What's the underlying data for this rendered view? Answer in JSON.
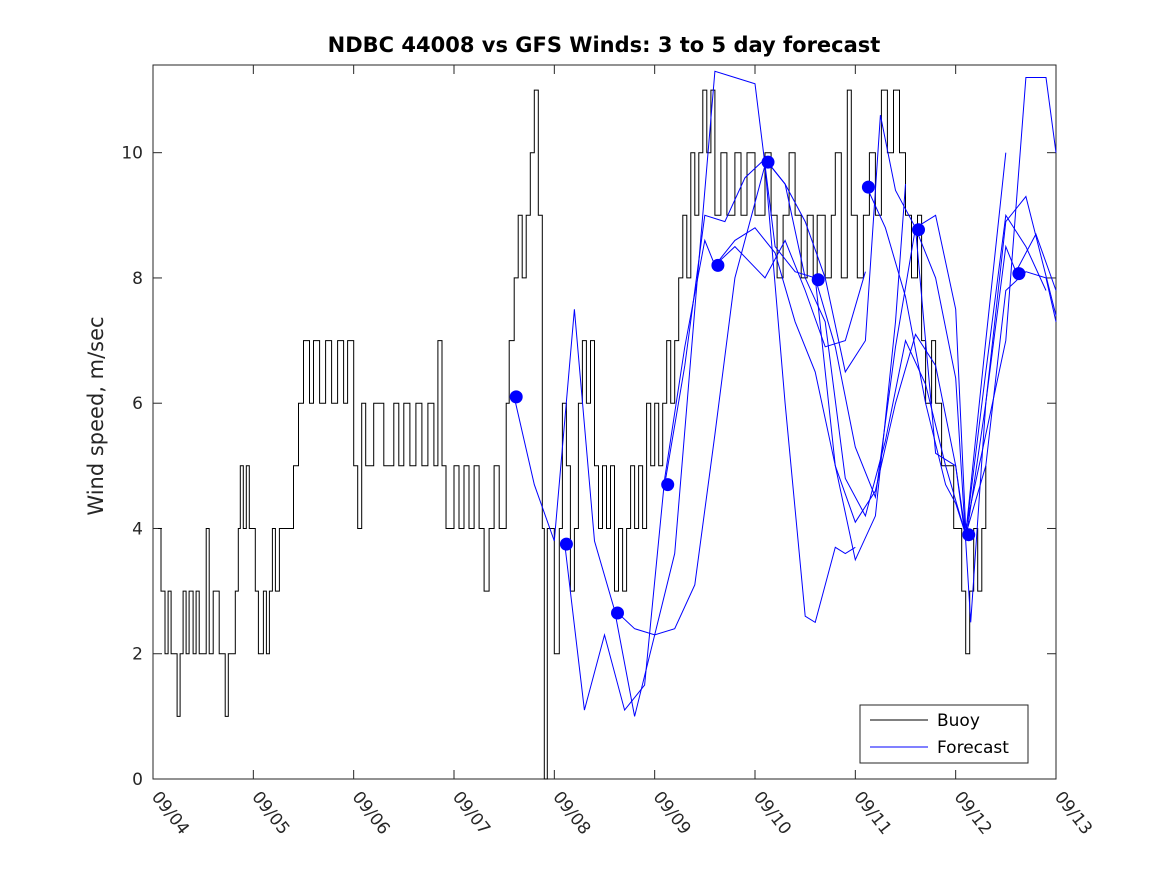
{
  "chart_data": {
    "type": "line",
    "title": "NDBC 44008 vs GFS Winds: 3 to 5 day forecast",
    "xlabel": "",
    "ylabel": "Wind speed, m/sec",
    "x_unit": "days since 09/04 00:00",
    "xlim": [
      0,
      9
    ],
    "ylim": [
      0,
      11.4
    ],
    "y_ticks": [
      0,
      2,
      4,
      6,
      8,
      10
    ],
    "x_tick_labels": [
      "09/04",
      "09/05",
      "09/06",
      "09/07",
      "09/08",
      "09/09",
      "09/10",
      "09/11",
      "09/12",
      "09/13"
    ],
    "legend": {
      "position": "bottom-right",
      "entries": [
        {
          "label": "Buoy",
          "color": "#000000"
        },
        {
          "label": "Forecast",
          "color": "#0000ff"
        }
      ]
    },
    "colors": {
      "buoy": "#000000",
      "forecast": "#0000ff",
      "axes": "#262626"
    },
    "buoy": {
      "name": "Buoy",
      "points": [
        [
          0.05,
          4
        ],
        [
          0.08,
          3
        ],
        [
          0.12,
          2
        ],
        [
          0.15,
          3
        ],
        [
          0.18,
          2
        ],
        [
          0.24,
          1
        ],
        [
          0.27,
          2
        ],
        [
          0.3,
          3
        ],
        [
          0.33,
          2
        ],
        [
          0.36,
          3
        ],
        [
          0.4,
          2
        ],
        [
          0.43,
          3
        ],
        [
          0.46,
          2
        ],
        [
          0.53,
          4
        ],
        [
          0.56,
          2
        ],
        [
          0.6,
          3
        ],
        [
          0.66,
          2
        ],
        [
          0.72,
          1
        ],
        [
          0.75,
          2
        ],
        [
          0.82,
          3
        ],
        [
          0.85,
          4
        ],
        [
          0.87,
          5
        ],
        [
          0.9,
          4
        ],
        [
          0.93,
          5
        ],
        [
          0.96,
          4
        ],
        [
          1.02,
          3
        ],
        [
          1.05,
          2
        ],
        [
          1.1,
          3
        ],
        [
          1.13,
          2
        ],
        [
          1.16,
          3
        ],
        [
          1.19,
          4
        ],
        [
          1.22,
          3
        ],
        [
          1.26,
          4
        ],
        [
          1.4,
          5
        ],
        [
          1.45,
          6
        ],
        [
          1.5,
          7
        ],
        [
          1.56,
          6
        ],
        [
          1.6,
          7
        ],
        [
          1.66,
          6
        ],
        [
          1.72,
          7
        ],
        [
          1.78,
          6
        ],
        [
          1.84,
          7
        ],
        [
          1.9,
          6
        ],
        [
          1.94,
          7
        ],
        [
          2.0,
          5
        ],
        [
          2.04,
          4
        ],
        [
          2.08,
          6
        ],
        [
          2.12,
          5
        ],
        [
          2.2,
          6
        ],
        [
          2.3,
          5
        ],
        [
          2.4,
          6
        ],
        [
          2.45,
          5
        ],
        [
          2.5,
          6
        ],
        [
          2.56,
          5
        ],
        [
          2.62,
          6
        ],
        [
          2.68,
          5
        ],
        [
          2.74,
          6
        ],
        [
          2.8,
          5
        ],
        [
          2.84,
          7
        ],
        [
          2.88,
          5
        ],
        [
          2.92,
          4
        ],
        [
          3.0,
          5
        ],
        [
          3.05,
          4
        ],
        [
          3.1,
          5
        ],
        [
          3.15,
          4
        ],
        [
          3.2,
          5
        ],
        [
          3.25,
          4
        ],
        [
          3.3,
          3
        ],
        [
          3.35,
          4
        ],
        [
          3.4,
          5
        ],
        [
          3.45,
          4
        ],
        [
          3.52,
          6
        ],
        [
          3.55,
          7
        ],
        [
          3.6,
          8
        ],
        [
          3.64,
          9
        ],
        [
          3.68,
          8
        ],
        [
          3.72,
          9
        ],
        [
          3.76,
          10
        ],
        [
          3.8,
          11
        ],
        [
          3.84,
          9
        ],
        [
          3.88,
          4
        ],
        [
          3.9,
          0
        ],
        [
          3.93,
          4
        ],
        [
          4.0,
          2
        ],
        [
          4.05,
          4
        ],
        [
          4.08,
          6
        ],
        [
          4.12,
          5
        ],
        [
          4.16,
          3
        ],
        [
          4.2,
          4
        ],
        [
          4.24,
          6
        ],
        [
          4.28,
          7
        ],
        [
          4.32,
          6
        ],
        [
          4.36,
          7
        ],
        [
          4.4,
          5
        ],
        [
          4.44,
          4
        ],
        [
          4.48,
          5
        ],
        [
          4.52,
          4
        ],
        [
          4.56,
          5
        ],
        [
          4.6,
          3
        ],
        [
          4.64,
          4
        ],
        [
          4.68,
          3
        ],
        [
          4.72,
          4
        ],
        [
          4.76,
          5
        ],
        [
          4.8,
          4
        ],
        [
          4.84,
          5
        ],
        [
          4.88,
          4
        ],
        [
          4.92,
          6
        ],
        [
          4.96,
          5
        ],
        [
          5.0,
          6
        ],
        [
          5.04,
          5
        ],
        [
          5.08,
          6
        ],
        [
          5.12,
          7
        ],
        [
          5.16,
          6
        ],
        [
          5.2,
          7
        ],
        [
          5.24,
          8
        ],
        [
          5.28,
          9
        ],
        [
          5.32,
          8
        ],
        [
          5.36,
          10
        ],
        [
          5.4,
          9
        ],
        [
          5.44,
          10
        ],
        [
          5.48,
          11
        ],
        [
          5.52,
          10
        ],
        [
          5.56,
          11
        ],
        [
          5.6,
          9
        ],
        [
          5.66,
          10
        ],
        [
          5.72,
          9
        ],
        [
          5.8,
          10
        ],
        [
          5.86,
          9
        ],
        [
          5.92,
          10
        ],
        [
          6.0,
          9
        ],
        [
          6.1,
          10
        ],
        [
          6.16,
          9
        ],
        [
          6.22,
          8
        ],
        [
          6.28,
          9
        ],
        [
          6.34,
          10
        ],
        [
          6.4,
          9
        ],
        [
          6.46,
          8
        ],
        [
          6.52,
          9
        ],
        [
          6.58,
          8
        ],
        [
          6.62,
          9
        ],
        [
          6.7,
          8
        ],
        [
          6.76,
          9
        ],
        [
          6.8,
          10
        ],
        [
          6.86,
          8
        ],
        [
          6.92,
          11
        ],
        [
          6.96,
          9
        ],
        [
          7.02,
          8
        ],
        [
          7.08,
          9
        ],
        [
          7.14,
          10
        ],
        [
          7.2,
          9
        ],
        [
          7.26,
          11
        ],
        [
          7.32,
          10
        ],
        [
          7.38,
          11
        ],
        [
          7.44,
          10
        ],
        [
          7.5,
          9
        ],
        [
          7.56,
          8
        ],
        [
          7.62,
          9
        ],
        [
          7.66,
          7
        ],
        [
          7.7,
          6
        ],
        [
          7.76,
          7
        ],
        [
          7.8,
          6
        ],
        [
          7.86,
          5
        ],
        [
          7.92,
          5
        ],
        [
          7.98,
          4
        ],
        [
          8.02,
          4
        ],
        [
          8.06,
          3
        ],
        [
          8.1,
          2
        ],
        [
          8.14,
          3
        ],
        [
          8.18,
          4
        ],
        [
          8.22,
          3
        ],
        [
          8.26,
          4
        ],
        [
          8.3,
          5
        ]
      ]
    },
    "forecast": {
      "name": "Forecast",
      "traces": [
        [
          [
            3.6,
            6.1
          ],
          [
            3.8,
            4.7
          ],
          [
            4.0,
            3.8
          ],
          [
            4.2,
            7.5
          ],
          [
            4.4,
            3.8
          ],
          [
            4.6,
            2.7
          ],
          [
            4.8,
            2.4
          ],
          [
            5.0,
            2.3
          ],
          [
            5.2,
            2.4
          ],
          [
            5.4,
            3.1
          ],
          [
            5.6,
            5.5
          ],
          [
            5.8,
            8.0
          ],
          [
            6.1,
            9.8
          ],
          [
            6.3,
            6.0
          ],
          [
            6.5,
            2.6
          ],
          [
            6.6,
            2.5
          ],
          [
            6.8,
            3.7
          ],
          [
            6.9,
            3.6
          ],
          [
            7.0,
            3.7
          ]
        ],
        [
          [
            4.1,
            3.8
          ],
          [
            4.3,
            1.1
          ],
          [
            4.5,
            2.3
          ],
          [
            4.7,
            1.1
          ],
          [
            4.9,
            1.5
          ],
          [
            5.1,
            4.8
          ],
          [
            5.3,
            6.9
          ],
          [
            5.5,
            8.6
          ],
          [
            5.6,
            8.2
          ],
          [
            5.8,
            8.5
          ],
          [
            6.1,
            8.0
          ],
          [
            6.3,
            8.6
          ],
          [
            6.5,
            7.8
          ],
          [
            6.7,
            6.9
          ],
          [
            6.9,
            7.0
          ],
          [
            7.1,
            8.1
          ]
        ],
        [
          [
            4.6,
            2.7
          ],
          [
            4.8,
            1.0
          ],
          [
            5.0,
            2.3
          ],
          [
            5.2,
            3.6
          ],
          [
            5.4,
            7.5
          ],
          [
            5.6,
            11.3
          ],
          [
            5.8,
            11.2
          ],
          [
            6.0,
            11.1
          ],
          [
            6.2,
            8.5
          ],
          [
            6.4,
            8.1
          ],
          [
            6.6,
            8.0
          ],
          [
            6.8,
            5.0
          ],
          [
            7.0,
            3.5
          ],
          [
            7.2,
            4.2
          ],
          [
            7.4,
            7.3
          ],
          [
            7.5,
            9.5
          ]
        ],
        [
          [
            5.1,
            4.7
          ],
          [
            5.3,
            6.6
          ],
          [
            5.5,
            9.0
          ],
          [
            5.7,
            8.9
          ],
          [
            5.9,
            9.6
          ],
          [
            6.1,
            9.9
          ],
          [
            6.3,
            9.5
          ],
          [
            6.5,
            8.0
          ],
          [
            6.7,
            7.3
          ],
          [
            6.9,
            4.8
          ],
          [
            7.1,
            4.2
          ],
          [
            7.3,
            5.4
          ],
          [
            7.5,
            7.0
          ],
          [
            7.7,
            6.3
          ],
          [
            7.9,
            5.0
          ],
          [
            8.1,
            3.9
          ],
          [
            8.3,
            6.5
          ],
          [
            8.5,
            9.0
          ],
          [
            8.7,
            8.5
          ],
          [
            8.9,
            7.8
          ]
        ],
        [
          [
            5.6,
            8.2
          ],
          [
            5.8,
            8.6
          ],
          [
            6.0,
            8.8
          ],
          [
            6.2,
            8.4
          ],
          [
            6.4,
            7.3
          ],
          [
            6.6,
            6.5
          ],
          [
            6.8,
            5.0
          ],
          [
            7.0,
            4.1
          ],
          [
            7.2,
            4.6
          ],
          [
            7.4,
            6.0
          ],
          [
            7.6,
            7.1
          ],
          [
            7.8,
            6.6
          ],
          [
            8.0,
            5.0
          ],
          [
            8.1,
            3.9
          ],
          [
            8.3,
            5.0
          ],
          [
            8.5,
            7.8
          ],
          [
            8.7,
            8.1
          ],
          [
            8.9,
            8.0
          ],
          [
            9.0,
            7.3
          ]
        ],
        [
          [
            6.1,
            9.9
          ],
          [
            6.3,
            9.5
          ],
          [
            6.5,
            8.9
          ],
          [
            6.7,
            8.0
          ],
          [
            6.9,
            6.5
          ],
          [
            7.1,
            7.0
          ],
          [
            7.25,
            10.6
          ],
          [
            7.4,
            9.4
          ],
          [
            7.6,
            8.8
          ],
          [
            7.8,
            8.0
          ],
          [
            8.0,
            6.4
          ],
          [
            8.15,
            2.5
          ],
          [
            8.3,
            6.0
          ],
          [
            8.5,
            8.9
          ],
          [
            8.7,
            9.3
          ],
          [
            9.0,
            7.4
          ]
        ],
        [
          [
            6.6,
            8.0
          ],
          [
            6.8,
            6.9
          ],
          [
            7.0,
            5.3
          ],
          [
            7.2,
            4.5
          ],
          [
            7.4,
            6.9
          ],
          [
            7.6,
            8.8
          ],
          [
            7.8,
            9.0
          ],
          [
            8.0,
            7.5
          ],
          [
            8.1,
            4.0
          ],
          [
            8.3,
            5.5
          ],
          [
            8.5,
            7.0
          ],
          [
            8.7,
            11.2
          ],
          [
            8.9,
            11.2
          ],
          [
            9.0,
            10.0
          ]
        ],
        [
          [
            7.1,
            9.5
          ],
          [
            7.3,
            8.8
          ],
          [
            7.5,
            7.7
          ],
          [
            7.7,
            6.0
          ],
          [
            7.9,
            4.7
          ],
          [
            8.0,
            4.4
          ],
          [
            8.1,
            3.9
          ],
          [
            8.3,
            7.0
          ],
          [
            8.5,
            10.0
          ]
        ],
        [
          [
            7.6,
            8.8
          ],
          [
            7.8,
            5.2
          ],
          [
            8.0,
            5.0
          ],
          [
            8.1,
            3.8
          ],
          [
            8.3,
            6.0
          ],
          [
            8.5,
            8.5
          ],
          [
            8.6,
            8.1
          ],
          [
            8.8,
            8.7
          ],
          [
            9.0,
            7.8
          ]
        ]
      ],
      "markers": [
        [
          3.62,
          6.1
        ],
        [
          4.12,
          3.75
        ],
        [
          4.63,
          2.65
        ],
        [
          5.13,
          4.7
        ],
        [
          5.63,
          8.2
        ],
        [
          6.13,
          9.85
        ],
        [
          6.63,
          7.97
        ],
        [
          7.13,
          9.45
        ],
        [
          7.63,
          8.77
        ],
        [
          8.13,
          3.9
        ],
        [
          8.63,
          8.07
        ]
      ]
    }
  }
}
